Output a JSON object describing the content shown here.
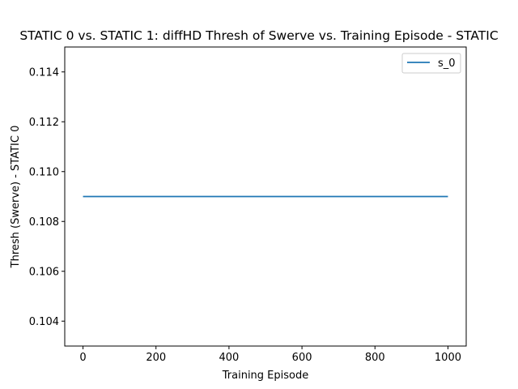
{
  "chart_data": {
    "type": "line",
    "title": "STATIC 0 vs. STATIC 1: diffHD Thresh of Swerve vs. Training Episode - STATIC",
    "xlabel": "Training Episode",
    "ylabel": "Thresh (Swerve) - STATIC 0",
    "xlim": [
      -50,
      1050
    ],
    "ylim": [
      0.103,
      0.115
    ],
    "xticks": [
      0,
      200,
      400,
      600,
      800,
      1000
    ],
    "xtick_labels": [
      "0",
      "200",
      "400",
      "600",
      "800",
      "1000"
    ],
    "yticks": [
      0.104,
      0.106,
      0.108,
      0.11,
      0.112,
      0.114
    ],
    "ytick_labels": [
      "0.104",
      "0.106",
      "0.108",
      "0.110",
      "0.112",
      "0.114"
    ],
    "grid": false,
    "legend_position": "top-right",
    "series": [
      {
        "name": "s_0",
        "color": "#1f77b4",
        "x": [
          0,
          1000
        ],
        "y": [
          0.109,
          0.109
        ]
      }
    ]
  }
}
